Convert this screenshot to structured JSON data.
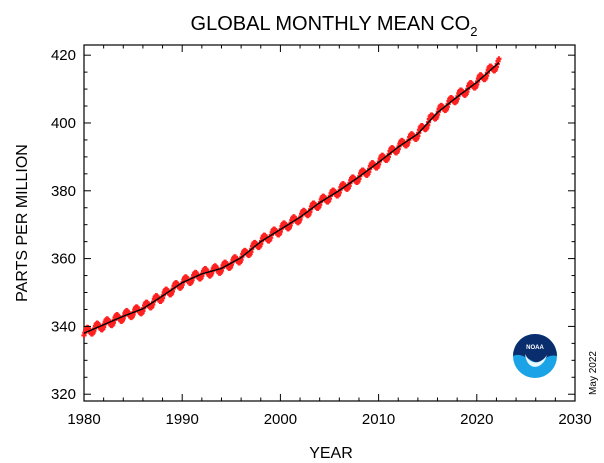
{
  "chart_data": {
    "type": "scatter",
    "title": "GLOBAL MONTHLY MEAN CO",
    "title_subscript": "2",
    "xlabel": "YEAR",
    "ylabel": "PARTS PER MILLION",
    "xlim": [
      1980,
      2030
    ],
    "ylim": [
      318,
      423
    ],
    "x_ticks": [
      1980,
      1990,
      2000,
      2010,
      2020,
      2030
    ],
    "y_ticks": [
      320,
      340,
      360,
      380,
      400,
      420
    ],
    "grid": false,
    "legend": "none",
    "date_label": "May 2022",
    "logo_text": "NOAA",
    "colors": {
      "monthly_points": "#ff2020",
      "trend_line": "#000000",
      "logo_top": "#0a2d6e",
      "logo_bottom": "#1aa3e6"
    },
    "series": [
      {
        "role": "monthly mean (points, seasonal cycle around trend)",
        "style": "red + markers",
        "seasonal_amplitude_ppm": 1.3,
        "x": [
          1980.0,
          1982.0,
          1984.0,
          1986.0,
          1988.0,
          1990.0,
          1992.0,
          1994.0,
          1996.0,
          1998.0,
          2000.0,
          2002.0,
          2004.0,
          2006.0,
          2008.0,
          2010.0,
          2012.0,
          2014.0,
          2016.0,
          2018.0,
          2020.0,
          2022.33
        ],
        "y": [
          338.0,
          340.5,
          343.0,
          345.2,
          349.0,
          352.9,
          355.5,
          357.1,
          360.3,
          365.0,
          368.6,
          372.2,
          376.5,
          380.1,
          384.1,
          388.4,
          392.9,
          396.8,
          403.1,
          407.7,
          412.0,
          418.0
        ]
      },
      {
        "role": "trend",
        "style": "black line",
        "x": [
          1980.0,
          1982.0,
          1984.0,
          1986.0,
          1988.0,
          1990.0,
          1992.0,
          1994.0,
          1996.0,
          1998.0,
          2000.0,
          2002.0,
          2004.0,
          2006.0,
          2008.0,
          2010.0,
          2012.0,
          2014.0,
          2016.0,
          2018.0,
          2020.0,
          2022.33
        ],
        "y": [
          338.0,
          340.5,
          343.0,
          345.2,
          349.0,
          352.9,
          355.5,
          357.1,
          360.3,
          365.0,
          368.6,
          372.2,
          376.5,
          380.1,
          384.1,
          388.4,
          392.9,
          396.8,
          403.1,
          407.7,
          412.0,
          418.0
        ]
      }
    ]
  }
}
